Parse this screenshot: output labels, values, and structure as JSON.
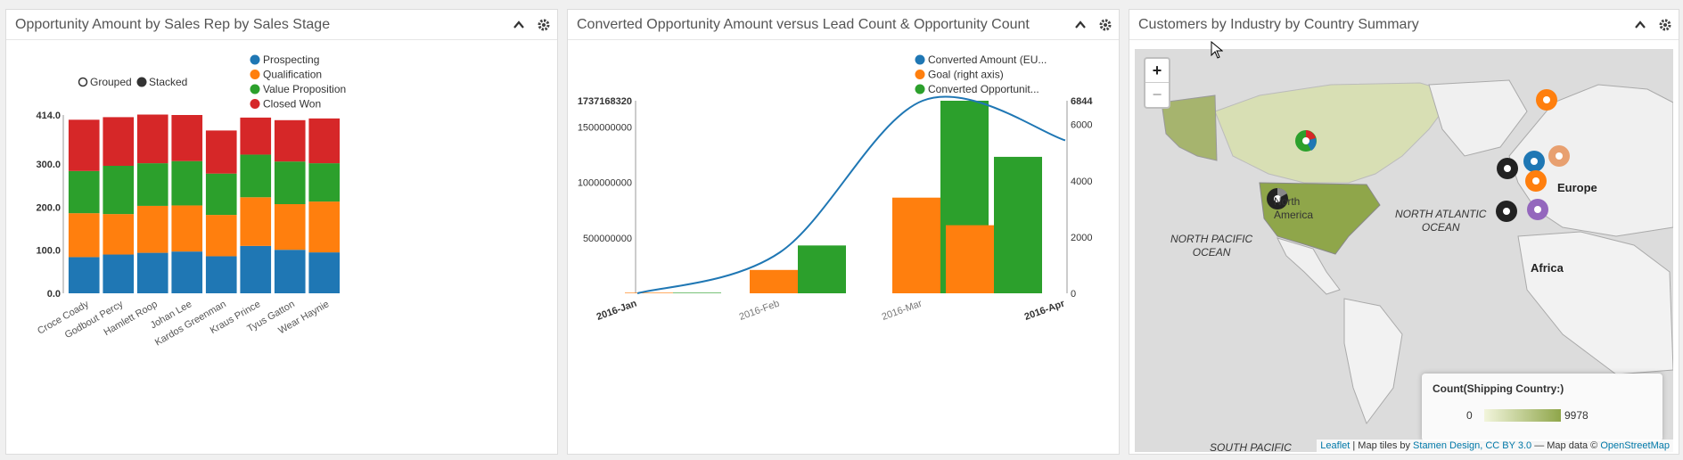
{
  "panels": {
    "p1": {
      "title": "Opportunity Amount by Sales Rep by Sales Stage"
    },
    "p2": {
      "title": "Converted Opportunity Amount versus Lead Count & Opportunity Count"
    },
    "p3": {
      "title": "Customers by Industry by Country Summary"
    }
  },
  "icons": {
    "collapse": "chevron-up-icon",
    "settings": "gear-icon"
  },
  "chart1": {
    "toggle": {
      "grouped": "Grouped",
      "stacked": "Stacked",
      "selected": "Stacked"
    },
    "legend": [
      "Prospecting",
      "Qualification",
      "Value Proposition",
      "Closed Won"
    ],
    "colors": [
      "#1f77b4",
      "#ff7f0e",
      "#2ca02c",
      "#d62728"
    ]
  },
  "chart2": {
    "legend": [
      "Converted Amount (EU...",
      "Goal (right axis)",
      "Converted Opportunit..."
    ],
    "colors": [
      "#1f77b4",
      "#ff7f0e",
      "#2ca02c"
    ]
  },
  "map": {
    "zoom_in": "+",
    "zoom_out": "−",
    "labels": {
      "north_america": "North\nAmerica",
      "north_pacific": "NORTH PACIFIC\nOCEAN",
      "north_atlantic": "NORTH ATLANTIC\nOCEAN",
      "south_pacific": "SOUTH PACIFIC",
      "europe": "Europe",
      "africa": "Africa"
    },
    "legend": {
      "title": "Count(Shipping Country:)",
      "min": "0",
      "max": "9978"
    },
    "attribution": {
      "leaflet": "Leaflet",
      "sep1": " | Map tiles by ",
      "stamen": "Stamen Design, CC BY 3.0",
      "sep2": " — Map data © ",
      "osm": "OpenStreetMap"
    }
  },
  "chart_data": [
    {
      "type": "bar",
      "stacked": true,
      "categories": [
        "Croce Coady",
        "Godbout Percy",
        "Hamlett Roop",
        "Johan Lee",
        "Kardos Greenman",
        "Kraus Prince",
        "Tyus Gatton",
        "Wear Haynie"
      ],
      "series": [
        {
          "name": "Prospecting",
          "values": [
            84,
            90,
            94,
            97,
            86,
            110,
            101,
            95
          ]
        },
        {
          "name": "Qualification",
          "values": [
            102,
            94,
            109,
            107,
            96,
            113,
            106,
            118
          ]
        },
        {
          "name": "Value Proposition",
          "values": [
            98,
            112,
            99,
            103,
            96,
            99,
            99,
            89
          ]
        },
        {
          "name": "Closed Won",
          "values": [
            119,
            113,
            113,
            107,
            100,
            86,
            96,
            104
          ]
        }
      ],
      "yticks": [
        "0.0",
        "100.0",
        "200.0",
        "300.0",
        "414.0"
      ],
      "ylim": [
        0,
        414
      ],
      "legend_position": "top-right"
    },
    {
      "type": "bar",
      "categories": [
        "2016-Jan",
        "2016-Feb",
        "2016-Mar",
        "2016-Apr"
      ],
      "series": [
        {
          "name": "Goal (right axis)",
          "axis": "right",
          "values": [
            20,
            830,
            3400,
            2420
          ]
        },
        {
          "name": "Converted Opportunit...",
          "axis": "right",
          "values": [
            20,
            1700,
            6844,
            4850
          ]
        },
        {
          "name": "Converted Amount (EU...",
          "type": "line",
          "axis": "left",
          "x": [
            "2016-Jan",
            "2016-Feb",
            "2016-Mar",
            "2016-Apr"
          ],
          "values": [
            0,
            370000000,
            1737168320,
            1380000000
          ]
        }
      ],
      "left_ticks": [
        "500000000",
        "1000000000",
        "1500000000"
      ],
      "left_max_label": "1737168320",
      "right_ticks": [
        "0",
        "2000",
        "4000",
        "6000"
      ],
      "right_max_label": "6844",
      "ylim_left": [
        0,
        1737168320
      ],
      "ylim_right": [
        0,
        6844
      ],
      "legend_position": "top-right"
    }
  ]
}
